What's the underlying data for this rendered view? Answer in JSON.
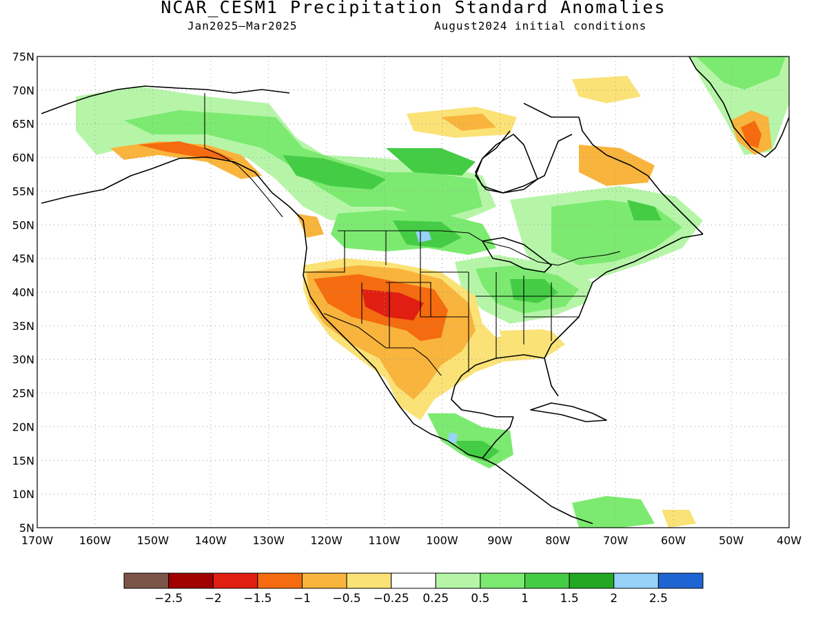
{
  "title": "NCAR_CESM1 Precipitation Standard Anomalies",
  "subtitle_left": "Jan2025–Mar2025",
  "subtitle_right": "August2024 initial conditions",
  "map": {
    "lon_range": [
      -170,
      -40
    ],
    "lat_range": [
      5,
      75
    ],
    "grid": "dotted",
    "y_ticks": [
      "75N",
      "70N",
      "65N",
      "60N",
      "55N",
      "50N",
      "45N",
      "40N",
      "35N",
      "30N",
      "25N",
      "20N",
      "15N",
      "10N",
      "5N"
    ],
    "x_ticks": [
      "170W",
      "160W",
      "150W",
      "140W",
      "130W",
      "120W",
      "110W",
      "100W",
      "90W",
      "80W",
      "70W",
      "60W",
      "50W",
      "40W"
    ]
  },
  "colorbar": {
    "colors": [
      "#7a5548",
      "#a00000",
      "#e01e12",
      "#f56b0f",
      "#f8b43c",
      "#fae277",
      "#ffffff",
      "#b6f5a8",
      "#7cea70",
      "#45cc45",
      "#22a822",
      "#96d2fa",
      "#1e64d2"
    ],
    "labels": [
      "−2.5",
      "−2",
      "−1.5",
      "−1",
      "−0.5",
      "−0.25",
      "0.25",
      "0.5",
      "1",
      "1.5",
      "2",
      "2.5"
    ]
  }
}
